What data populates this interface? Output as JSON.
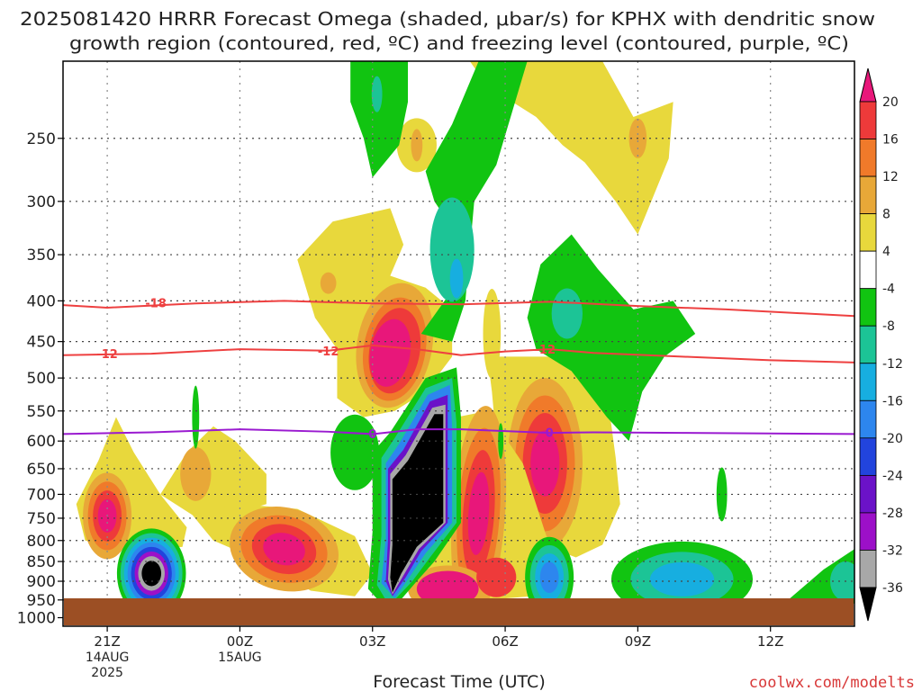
{
  "chart_data": {
    "type": "heatmap",
    "title_line1": "2025081420 HRRR Forecast Omega (shaded, μbar/s) for KPHX with dendritic snow",
    "title_line2": "growth region (contoured, red, ºC) and freezing level (contoured, purple, ºC)",
    "xlabel": "Forecast Time (UTC)",
    "ylabel": "",
    "credit": "coolwx.com/modelts",
    "x_ticks": [
      {
        "hour": 21,
        "label": "21Z",
        "sub1": "14AUG",
        "sub2": "2025"
      },
      {
        "hour": 24,
        "label": "00Z",
        "sub1": "15AUG",
        "sub2": ""
      },
      {
        "hour": 27,
        "label": "03Z",
        "sub1": "",
        "sub2": ""
      },
      {
        "hour": 30,
        "label": "06Z",
        "sub1": "",
        "sub2": ""
      },
      {
        "hour": 33,
        "label": "09Z",
        "sub1": "",
        "sub2": ""
      },
      {
        "hour": 36,
        "label": "12Z",
        "sub1": "",
        "sub2": ""
      }
    ],
    "xlim": [
      20,
      37.9
    ],
    "y_ticks": [
      250,
      300,
      350,
      400,
      450,
      500,
      550,
      600,
      650,
      700,
      750,
      800,
      850,
      900,
      950,
      1000
    ],
    "ylim": [
      1025,
      200
    ],
    "y_scale": "log-pressure",
    "grid": true,
    "colorbar": {
      "levels": [
        20,
        16,
        12,
        8,
        4,
        -4,
        -8,
        -12,
        -16,
        -20,
        -24,
        -28,
        -32,
        -36
      ],
      "colors": [
        "#e8177a",
        "#ee3a3a",
        "#f07a2a",
        "#e8a838",
        "#e8d83c",
        "#ffffff",
        "#11c411",
        "#1cc496",
        "#17aee0",
        "#2d86ee",
        "#2244dd",
        "#6b12c8",
        "#9c10c8",
        "#a8a8a8",
        "#000000"
      ],
      "labels": [
        "20",
        "16",
        "12",
        "8",
        "4",
        "-4",
        "-8",
        "-12",
        "-16",
        "-20",
        "-24",
        "-28",
        "-32",
        "-36"
      ]
    },
    "surface_color": "#9c4f24",
    "contours": [
      {
        "name": "",
        "label": "-18",
        "color": "#ee4040",
        "points": [
          [
            20,
            405
          ],
          [
            21,
            408
          ],
          [
            23,
            403
          ],
          [
            25,
            400
          ],
          [
            27,
            403
          ],
          [
            29,
            404
          ],
          [
            31,
            401
          ],
          [
            33,
            406
          ],
          [
            35,
            410
          ],
          [
            37.9,
            418
          ]
        ],
        "label_at": [
          22.1,
          402
        ]
      },
      {
        "name": "",
        "label": "-12",
        "color": "#ee4040",
        "points": [
          [
            20,
            468
          ],
          [
            22,
            466
          ],
          [
            24,
            460
          ],
          [
            26,
            462
          ],
          [
            27,
            455
          ],
          [
            28,
            460
          ],
          [
            29,
            468
          ],
          [
            30,
            463
          ],
          [
            31,
            460
          ],
          [
            32,
            465
          ],
          [
            34,
            470
          ],
          [
            36,
            475
          ],
          [
            37.9,
            478
          ]
        ],
        "label_at": [
          26,
          462
        ]
      },
      {
        "name": "",
        "label": "0",
        "color": "#9a1ad0",
        "points": [
          [
            20,
            588
          ],
          [
            22,
            585
          ],
          [
            24,
            580
          ],
          [
            26,
            584
          ],
          [
            27,
            588
          ],
          [
            28,
            580
          ],
          [
            29,
            580
          ],
          [
            30,
            583
          ],
          [
            31,
            586
          ],
          [
            32,
            585
          ],
          [
            34,
            586
          ],
          [
            37.9,
            588
          ]
        ],
        "label_at": [
          27,
          587
        ]
      }
    ],
    "extra_contour_labels": [
      {
        "label": "-12",
        "hour": 21,
        "p": 466
      },
      {
        "label": "-12",
        "hour": 30.9,
        "p": 460
      },
      {
        "label": "0",
        "hour": 31,
        "p": 585
      }
    ]
  }
}
